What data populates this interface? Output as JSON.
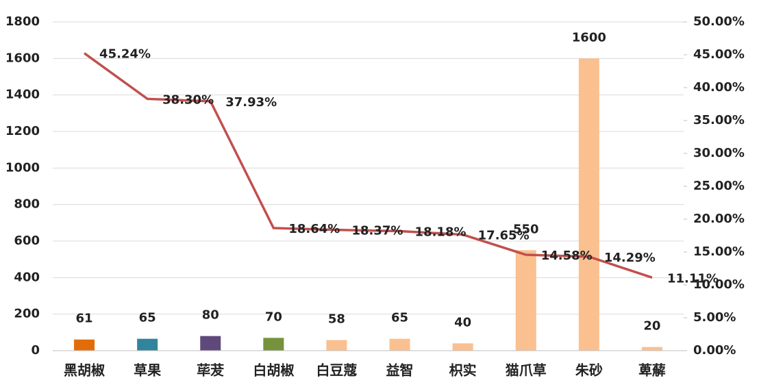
{
  "chart_data": {
    "type": "combo",
    "categories": [
      "黑胡椒",
      "草果",
      "荜茇",
      "白胡椒",
      "白豆蔻",
      "益智",
      "枳实",
      "猫爪草",
      "朱砂",
      "萆薢"
    ],
    "series": [
      {
        "type": "bar",
        "colors": [
          "#e36c0a",
          "#31849b",
          "#5f497a",
          "#76923c",
          "#fac090",
          "#fac090",
          "#fac090",
          "#fac090",
          "#fac090",
          "#fac090"
        ],
        "values": [
          61,
          65,
          80,
          70,
          58,
          65,
          40,
          550,
          1600,
          20
        ]
      },
      {
        "type": "line",
        "axis": "y2",
        "color": "#c0504d",
        "values": [
          45.24,
          38.3,
          37.93,
          18.64,
          18.37,
          18.18,
          17.65,
          14.58,
          14.29,
          11.11
        ],
        "value_labels": [
          "45.24%",
          "38.30%",
          "37.93%",
          "18.64%",
          "18.37%",
          "18.18%",
          "17.65%",
          "14.58%",
          "14.29%",
          "11.11%"
        ]
      }
    ],
    "ylim": [
      0,
      1800
    ],
    "yticks": [
      0,
      200,
      400,
      600,
      800,
      1000,
      1200,
      1400,
      1600,
      1800
    ],
    "y2lim": [
      0,
      50
    ],
    "y2ticks": [
      {
        "value": 0,
        "label": "0.00%"
      },
      {
        "value": 5,
        "label": "5.00%"
      },
      {
        "value": 10,
        "label": "10.00%"
      },
      {
        "value": 15,
        "label": "15.00%"
      },
      {
        "value": 20,
        "label": "20.00%"
      },
      {
        "value": 25,
        "label": "25.00%"
      },
      {
        "value": 30,
        "label": "30.00%"
      },
      {
        "value": 35,
        "label": "35.00%"
      },
      {
        "value": 40,
        "label": "40.00%"
      },
      {
        "value": 45,
        "label": "45.00%"
      },
      {
        "value": 50,
        "label": "50.00%"
      }
    ],
    "grid": true
  }
}
